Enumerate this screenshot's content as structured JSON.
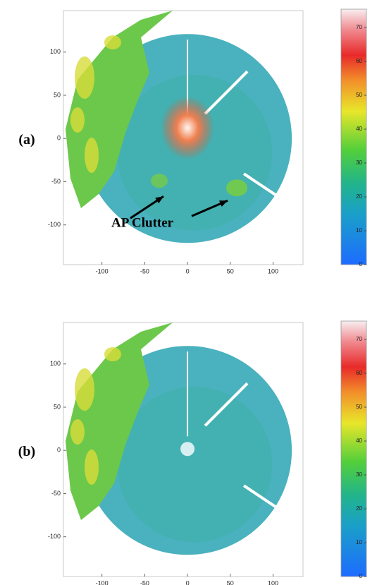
{
  "panels": [
    {
      "label": "(a)",
      "xticks": [
        -100,
        -50,
        0,
        50,
        100
      ],
      "yticks": [
        100,
        50,
        0,
        -50,
        -100
      ],
      "xlim": [
        -145,
        135
      ],
      "ylim": [
        -146,
        148
      ],
      "colorbar": {
        "ticks": [
          0,
          10,
          20,
          30,
          40,
          50,
          60,
          70
        ],
        "lim": [
          0,
          75
        ]
      },
      "annotation": "AP Clutter"
    },
    {
      "label": "(b)",
      "xticks": [
        -100,
        -50,
        0,
        50,
        100
      ],
      "yticks": [
        100,
        50,
        0,
        -50,
        -100
      ],
      "xlim": [
        -145,
        135
      ],
      "ylim": [
        -146,
        148
      ],
      "colorbar": {
        "ticks": [
          0,
          10,
          20,
          30,
          40,
          50,
          60,
          70
        ],
        "lim": [
          0,
          75
        ]
      }
    }
  ]
}
